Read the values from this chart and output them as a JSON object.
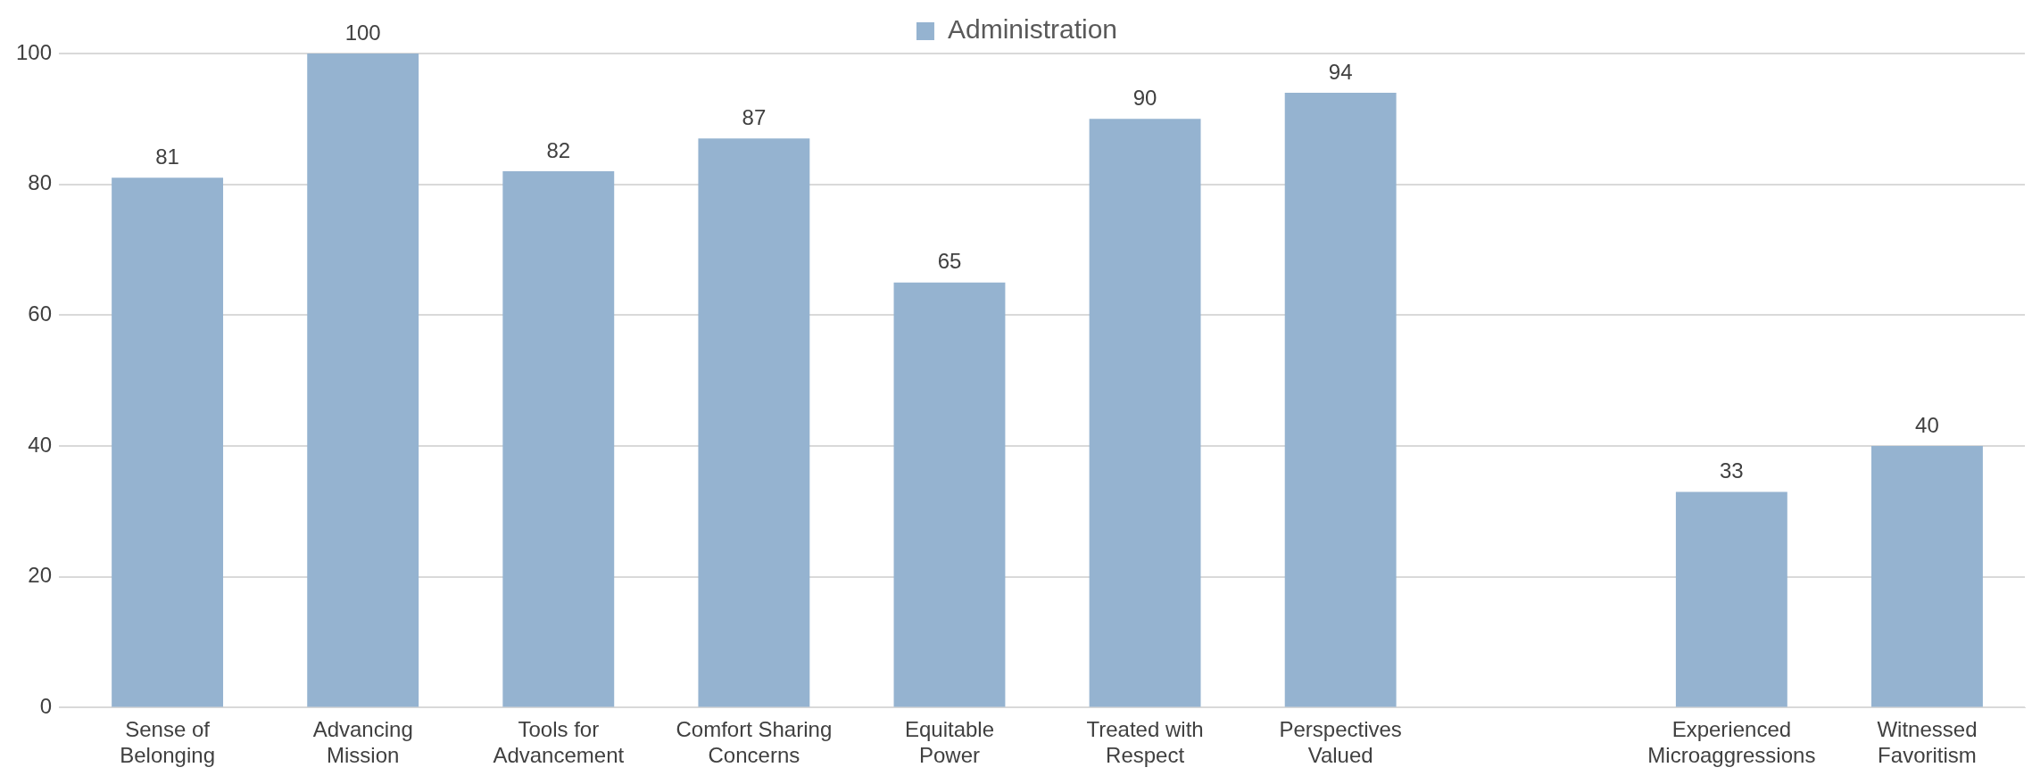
{
  "chart_data": {
    "type": "bar",
    "categories": [
      "Sense of\nBelonging",
      "Advancing\nMission",
      "Tools for\nAdvancement",
      "Comfort Sharing\nConcerns",
      "Equitable\nPower",
      "Treated with\nRespect",
      "Perspectives\nValued",
      null,
      "Experienced\nMicroaggressions",
      "Witnessed\nFavoritism"
    ],
    "series": [
      {
        "name": "Administration",
        "color": "#95b3d0",
        "values": [
          81,
          100,
          82,
          87,
          65,
          90,
          94,
          null,
          33,
          40
        ]
      }
    ],
    "ylim": [
      0,
      100
    ],
    "yticks": [
      0,
      20,
      40,
      60,
      80,
      100
    ],
    "grid": "y",
    "legend": "top",
    "data_labels": true
  }
}
